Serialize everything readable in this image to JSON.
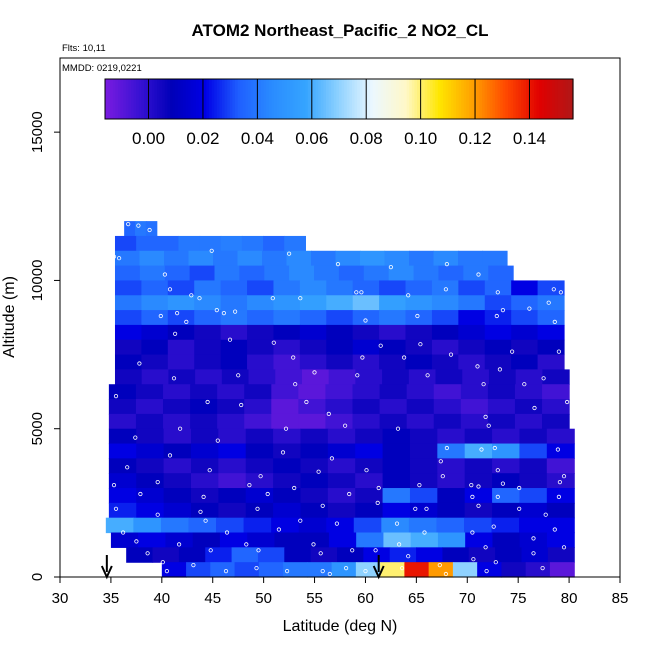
{
  "chart_data": {
    "type": "heatmap",
    "title": "ATOM2 Northeast_Pacific_2 NO2_CL",
    "subtitle_lines": [
      "Flts: 10,11",
      "MMDD: 0219,0221"
    ],
    "xlabel": "Latitude (deg N)",
    "ylabel": "Altitude (m)",
    "xlim": [
      30,
      85
    ],
    "ylim": [
      0,
      17500
    ],
    "x_ticks": [
      30,
      35,
      40,
      45,
      50,
      55,
      60,
      65,
      70,
      75,
      80,
      85
    ],
    "y_ticks": [
      0,
      5000,
      10000,
      15000
    ],
    "y_tick_labels": [
      "0",
      "5000",
      "10000",
      "15000"
    ],
    "colorbar": {
      "range": [
        -0.016,
        0.156
      ],
      "ticks": [
        0.0,
        0.02,
        0.04,
        0.06,
        0.08,
        0.1,
        0.12,
        0.14
      ],
      "tick_labels": [
        "0.00",
        "0.02",
        "0.04",
        "0.06",
        "0.08",
        "0.10",
        "0.12",
        "0.14"
      ],
      "colors": [
        "#7a1be0",
        "#3a12d4",
        "#0000b8",
        "#0000e6",
        "#1f5fff",
        "#2a8cff",
        "#35a4ff",
        "#8fd2ff",
        "#ecf8ff",
        "#fff8c8",
        "#ffe600",
        "#ffa000",
        "#ff4800",
        "#e00000",
        "#b01818"
      ]
    },
    "altitude_bins": [
      {
        "alt": [
          11500,
          12000
        ],
        "lat": [
          36.3,
          39.5
        ],
        "values": [
          0.035,
          0.04,
          0.038
        ]
      },
      {
        "alt": [
          11000,
          11500
        ],
        "lat": [
          35.4,
          54.1
        ],
        "values": [
          0.03,
          0.035,
          0.035,
          0.04,
          0.04,
          0.042,
          0.04,
          0.035,
          0.04
        ]
      },
      {
        "alt": [
          10500,
          11000
        ],
        "lat": [
          35.4,
          73.9
        ],
        "values": [
          0.04,
          0.045,
          0.04,
          0.045,
          0.04,
          0.045,
          0.04,
          0.045,
          0.04,
          0.045,
          0.05,
          0.045,
          0.04,
          0.045,
          0.04,
          0.04
        ]
      },
      {
        "alt": [
          10000,
          10500
        ],
        "lat": [
          35.4,
          74.5
        ],
        "values": [
          0.035,
          0.04,
          0.035,
          0.03,
          0.04,
          0.035,
          0.04,
          0.045,
          0.04,
          0.035,
          0.04,
          0.045,
          0.04,
          0.035,
          0.04,
          0.035
        ]
      },
      {
        "alt": [
          9500,
          10000
        ],
        "lat": [
          35.4,
          79.5
        ],
        "values": [
          0.03,
          0.035,
          0.03,
          0.04,
          0.035,
          0.03,
          0.04,
          0.045,
          0.04,
          0.035,
          0.03,
          0.035,
          0.04,
          0.03,
          0.035,
          0.02,
          0.03
        ]
      },
      {
        "alt": [
          9000,
          9500
        ],
        "lat": [
          35.4,
          79.5
        ],
        "values": [
          0.04,
          0.045,
          0.05,
          0.045,
          0.04,
          0.045,
          0.05,
          0.055,
          0.06,
          0.065,
          0.055,
          0.05,
          0.045,
          0.04,
          0.03,
          0.035,
          0.04
        ]
      },
      {
        "alt": [
          8500,
          9000
        ],
        "lat": [
          35.4,
          79.5
        ],
        "values": [
          0.03,
          0.035,
          0.03,
          0.035,
          0.04,
          0.035,
          0.04,
          0.035,
          0.03,
          0.035,
          0.04,
          0.035,
          0.03,
          0.02,
          0.025,
          0.03,
          0.035
        ]
      },
      {
        "alt": [
          8000,
          8500
        ],
        "lat": [
          35.4,
          79.5
        ],
        "values": [
          0.02,
          0.015,
          0.01,
          0.005,
          0.0,
          0.005,
          0.01,
          0.015,
          0.01,
          0.005,
          0.0,
          0.005,
          0.01,
          0.015,
          0.02,
          0.015,
          0.02
        ]
      },
      {
        "alt": [
          7500,
          8000
        ],
        "lat": [
          35.4,
          79.5
        ],
        "values": [
          0.005,
          0.01,
          0.0,
          0.005,
          0.01,
          0.005,
          0.0,
          0.005,
          0.01,
          0.015,
          0.01,
          0.005,
          0.0,
          0.005,
          0.01,
          0.005,
          0.01
        ]
      },
      {
        "alt": [
          7000,
          7500
        ],
        "lat": [
          35.4,
          79.5
        ],
        "values": [
          0.01,
          0.005,
          0.0,
          0.005,
          0.01,
          0.0,
          -0.005,
          0.0,
          0.005,
          0.0,
          0.005,
          0.01,
          0.005,
          0.0,
          0.005,
          0.01,
          0.0
        ]
      },
      {
        "alt": [
          6500,
          7000
        ],
        "lat": [
          35.4,
          80.0
        ],
        "values": [
          0.005,
          0.0,
          0.005,
          0.0,
          0.005,
          0.0,
          -0.005,
          -0.01,
          -0.005,
          0.0,
          0.005,
          0.0,
          0.005,
          0.0,
          0.005,
          0.0,
          0.005
        ]
      },
      {
        "alt": [
          6000,
          6500
        ],
        "lat": [
          34.8,
          80.0
        ],
        "values": [
          0.01,
          0.005,
          0.0,
          0.005,
          0.0,
          0.005,
          -0.005,
          -0.01,
          -0.005,
          0.0,
          0.005,
          0.0,
          -0.005,
          0.0,
          0.005,
          0.0,
          -0.005
        ]
      },
      {
        "alt": [
          5500,
          6000
        ],
        "lat": [
          34.8,
          80.0
        ],
        "values": [
          0.005,
          0.0,
          0.005,
          0.01,
          0.005,
          0.0,
          -0.01,
          -0.005,
          0.0,
          0.005,
          0.0,
          0.005,
          0.0,
          -0.005,
          0.0,
          0.005,
          0.0
        ]
      },
      {
        "alt": [
          5000,
          5500
        ],
        "lat": [
          34.8,
          80.0
        ],
        "values": [
          0.0,
          0.005,
          0.0,
          0.005,
          0.0,
          -0.005,
          -0.01,
          -0.01,
          -0.005,
          0.0,
          0.005,
          0.0,
          0.005,
          0.0,
          0.005,
          0.0,
          0.005
        ]
      },
      {
        "alt": [
          4500,
          5000
        ],
        "lat": [
          34.8,
          80.5
        ],
        "values": [
          0.01,
          0.005,
          0.0,
          0.005,
          0.0,
          0.005,
          0.0,
          0.005,
          0.0,
          0.005,
          0.01,
          0.005,
          0.0,
          0.005,
          0.0,
          0.005,
          0.0
        ]
      },
      {
        "alt": [
          4000,
          4500
        ],
        "lat": [
          34.8,
          80.5
        ],
        "values": [
          0.02,
          0.015,
          0.01,
          0.015,
          0.02,
          0.01,
          0.005,
          0.01,
          0.015,
          0.02,
          0.01,
          0.005,
          0.04,
          0.06,
          0.05,
          0.03,
          0.02
        ]
      },
      {
        "alt": [
          3500,
          4000
        ],
        "lat": [
          34.8,
          80.5
        ],
        "values": [
          0.01,
          0.005,
          0.0,
          0.005,
          0.0,
          0.005,
          0.01,
          0.005,
          0.0,
          0.005,
          0.01,
          0.005,
          0.0,
          0.005,
          0.0,
          0.005,
          -0.005
        ]
      },
      {
        "alt": [
          3000,
          3500
        ],
        "lat": [
          34.8,
          80.5
        ],
        "values": [
          0.015,
          0.01,
          0.005,
          0.0,
          -0.005,
          0.0,
          0.005,
          0.01,
          0.005,
          0.0,
          0.01,
          0.005,
          0.0,
          0.005,
          0.01,
          0.005,
          0.0
        ]
      },
      {
        "alt": [
          2500,
          3000
        ],
        "lat": [
          34.8,
          80.5
        ],
        "values": [
          0.02,
          0.015,
          0.01,
          0.005,
          0.01,
          0.015,
          0.01,
          0.005,
          0.0,
          0.005,
          0.04,
          0.03,
          0.01,
          0.02,
          0.035,
          0.03,
          0.02
        ]
      },
      {
        "alt": [
          2000,
          2500
        ],
        "lat": [
          34.8,
          80.5
        ],
        "values": [
          0.025,
          0.02,
          0.015,
          0.01,
          0.005,
          0.01,
          0.015,
          0.01,
          0.005,
          0.01,
          0.02,
          0.015,
          0.01,
          0.005,
          0.01,
          0.015,
          0.01
        ]
      },
      {
        "alt": [
          1500,
          2000
        ],
        "lat": [
          34.5,
          80.5
        ],
        "values": [
          0.06,
          0.05,
          0.04,
          0.035,
          0.03,
          0.025,
          0.02,
          0.015,
          0.02,
          0.03,
          0.045,
          0.04,
          0.035,
          0.03,
          0.025,
          0.02,
          0.02
        ]
      },
      {
        "alt": [
          1000,
          1500
        ],
        "lat": [
          35.0,
          80.5
        ],
        "values": [
          0.015,
          0.02,
          0.015,
          0.01,
          0.02,
          0.015,
          0.01,
          0.01,
          0.02,
          0.04,
          0.065,
          0.06,
          0.05,
          0.02,
          0.01,
          0.015,
          0.02
        ]
      },
      {
        "alt": [
          500,
          1000
        ],
        "lat": [
          36.5,
          80.5
        ],
        "values": [
          0.01,
          0.005,
          0.01,
          0.025,
          0.035,
          0.03,
          0.01,
          0.005,
          0.01,
          0.02,
          0.025,
          0.02,
          0.01,
          0.005,
          0.01,
          0.015,
          0.005
        ]
      },
      {
        "alt": [
          0,
          500
        ],
        "lat": [
          40.0,
          80.5
        ],
        "values": [
          0.02,
          0.03,
          0.035,
          0.03,
          0.035,
          0.04,
          0.04,
          0.05,
          0.07,
          0.1,
          0.14,
          0.12,
          0.07,
          0.02,
          0.005,
          0.0,
          -0.01
        ]
      }
    ],
    "sample_points": [
      [
        36.7,
        11900
      ],
      [
        37.7,
        11850
      ],
      [
        38.8,
        11700
      ],
      [
        35.3,
        10800
      ],
      [
        35.8,
        10750
      ],
      [
        44.9,
        11000
      ],
      [
        52.5,
        10900
      ],
      [
        57.3,
        10550
      ],
      [
        62.5,
        10450
      ],
      [
        68.0,
        10550
      ],
      [
        71.1,
        10200
      ],
      [
        40.3,
        10200
      ],
      [
        40.8,
        9700
      ],
      [
        42.9,
        9500
      ],
      [
        43.7,
        9400
      ],
      [
        50.9,
        9400
      ],
      [
        53.6,
        9400
      ],
      [
        59.1,
        9600
      ],
      [
        59.6,
        9600
      ],
      [
        64.2,
        9500
      ],
      [
        67.9,
        9700
      ],
      [
        73.0,
        9600
      ],
      [
        78.5,
        9700
      ],
      [
        79.2,
        9600
      ],
      [
        73.5,
        9000
      ],
      [
        76.1,
        9050
      ],
      [
        78.0,
        9250
      ],
      [
        39.9,
        8800
      ],
      [
        41.5,
        8900
      ],
      [
        45.4,
        9000
      ],
      [
        46.1,
        8900
      ],
      [
        47.2,
        8950
      ],
      [
        42.4,
        8600
      ],
      [
        60.0,
        8650
      ],
      [
        65.1,
        8800
      ],
      [
        72.9,
        8800
      ],
      [
        78.6,
        8600
      ],
      [
        41.3,
        8200
      ],
      [
        46.7,
        8000
      ],
      [
        51.0,
        7900
      ],
      [
        61.5,
        7800
      ],
      [
        65.4,
        7850
      ],
      [
        74.4,
        7600
      ],
      [
        52.9,
        7400
      ],
      [
        59.7,
        7400
      ],
      [
        63.8,
        7400
      ],
      [
        68.4,
        7500
      ],
      [
        79.0,
        7600
      ],
      [
        37.8,
        7200
      ],
      [
        41.2,
        6700
      ],
      [
        47.5,
        6800
      ],
      [
        55.0,
        6900
      ],
      [
        59.2,
        6800
      ],
      [
        66.1,
        6800
      ],
      [
        71.0,
        7100
      ],
      [
        73.2,
        7000
      ],
      [
        77.5,
        6700
      ],
      [
        53.1,
        6500
      ],
      [
        71.6,
        6500
      ],
      [
        75.6,
        6500
      ],
      [
        35.5,
        6100
      ],
      [
        44.5,
        5900
      ],
      [
        47.8,
        5800
      ],
      [
        54.2,
        5900
      ],
      [
        56.4,
        5500
      ],
      [
        71.8,
        5400
      ],
      [
        76.6,
        5700
      ],
      [
        79.8,
        5900
      ],
      [
        41.8,
        5000
      ],
      [
        52.2,
        5000
      ],
      [
        58.0,
        5100
      ],
      [
        63.2,
        5000
      ],
      [
        72.1,
        5100
      ],
      [
        37.4,
        4700
      ],
      [
        45.5,
        4600
      ],
      [
        51.9,
        4200
      ],
      [
        68.0,
        4350
      ],
      [
        71.4,
        4300
      ],
      [
        72.7,
        4350
      ],
      [
        78.9,
        4300
      ],
      [
        40.8,
        4100
      ],
      [
        56.7,
        4000
      ],
      [
        67.4,
        3900
      ],
      [
        36.6,
        3700
      ],
      [
        44.7,
        3600
      ],
      [
        49.7,
        3400
      ],
      [
        55.4,
        3550
      ],
      [
        60.1,
        3600
      ],
      [
        67.6,
        3400
      ],
      [
        73.0,
        3600
      ],
      [
        79.5,
        3400
      ],
      [
        35.3,
        3100
      ],
      [
        39.6,
        3200
      ],
      [
        48.6,
        3100
      ],
      [
        53.0,
        3000
      ],
      [
        61.3,
        3000
      ],
      [
        65.3,
        3100
      ],
      [
        70.4,
        3100
      ],
      [
        71.1,
        3050
      ],
      [
        73.5,
        3150
      ],
      [
        75.1,
        3000
      ],
      [
        79.1,
        3200
      ],
      [
        37.9,
        2800
      ],
      [
        44.1,
        2700
      ],
      [
        50.4,
        2800
      ],
      [
        58.4,
        2800
      ],
      [
        61.2,
        2500
      ],
      [
        70.5,
        2700
      ],
      [
        73.0,
        2700
      ],
      [
        79.0,
        2700
      ],
      [
        35.5,
        2300
      ],
      [
        43.8,
        2200
      ],
      [
        49.4,
        2300
      ],
      [
        55.8,
        2400
      ],
      [
        64.9,
        2300
      ],
      [
        66.0,
        2300
      ],
      [
        71.1,
        2400
      ],
      [
        75.1,
        2300
      ],
      [
        77.7,
        2100
      ],
      [
        39.6,
        2100
      ],
      [
        44.3,
        1900
      ],
      [
        53.6,
        1900
      ],
      [
        57.2,
        1800
      ],
      [
        63.1,
        1800
      ],
      [
        72.6,
        1700
      ],
      [
        78.6,
        1600
      ],
      [
        36.2,
        1500
      ],
      [
        46.4,
        1500
      ],
      [
        51.5,
        1600
      ],
      [
        65.8,
        1500
      ],
      [
        70.5,
        1500
      ],
      [
        76.5,
        1300
      ],
      [
        37.5,
        1200
      ],
      [
        41.7,
        1100
      ],
      [
        48.3,
        1100
      ],
      [
        54.9,
        1100
      ],
      [
        63.3,
        1100
      ],
      [
        71.8,
        1000
      ],
      [
        79.5,
        1000
      ],
      [
        38.6,
        800
      ],
      [
        44.8,
        900
      ],
      [
        49.5,
        900
      ],
      [
        55.6,
        800
      ],
      [
        58.7,
        900
      ],
      [
        61.0,
        900
      ],
      [
        64.2,
        700
      ],
      [
        70.6,
        600
      ],
      [
        72.8,
        500
      ],
      [
        76.5,
        800
      ],
      [
        40.1,
        500
      ],
      [
        43.1,
        400
      ],
      [
        49.3,
        300
      ],
      [
        52.3,
        200
      ],
      [
        55.8,
        200
      ],
      [
        58.1,
        300
      ],
      [
        60.0,
        200
      ],
      [
        63.6,
        300
      ],
      [
        67.3,
        400
      ],
      [
        71.9,
        200
      ],
      [
        77.4,
        300
      ],
      [
        46.3,
        200
      ],
      [
        40.5,
        200
      ],
      [
        56.5,
        100
      ],
      [
        67.9,
        100
      ]
    ],
    "arrows_lat": [
      34.6,
      61.3
    ]
  }
}
